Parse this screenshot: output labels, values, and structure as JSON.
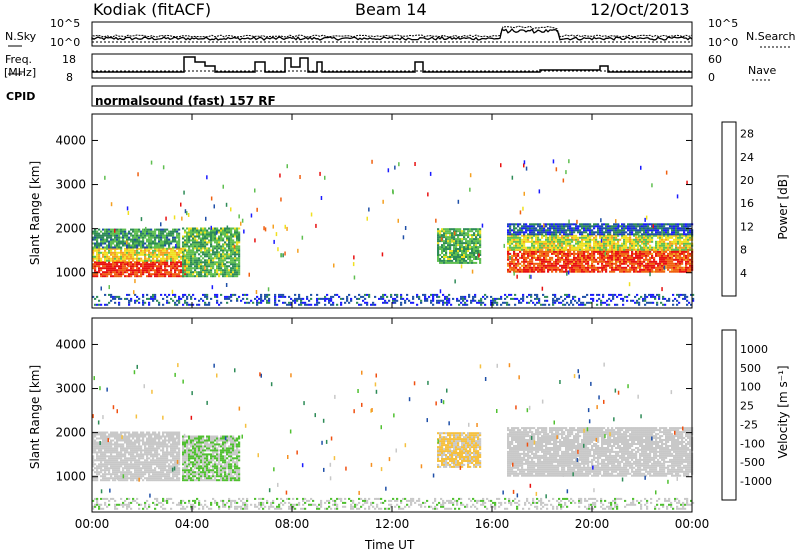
{
  "header": {
    "radar": "Kodiak (fitACF)",
    "beam": "Beam 14",
    "date": "12/Oct/2013"
  },
  "top_panels": {
    "nsky_label": "N.Sky",
    "nsky_ticks": [
      "10^5",
      "10^0"
    ],
    "nsearch_label": "N.Search",
    "nsearch_ticks": [
      "10^5",
      "10^0"
    ],
    "freq_label": "Freq.",
    "freq_unit": "[MHz]",
    "freq_ticks": [
      "18",
      "8"
    ],
    "nave_label": "Nave",
    "nave_ticks": [
      "60",
      "0"
    ],
    "cpid_label": "CPID",
    "cpid_text": "normalsound (fast) 157 RF"
  },
  "colors": {
    "power_scale": [
      "#1a1aff",
      "#1f4fa8",
      "#2e8b57",
      "#5fbf50",
      "#f0e020",
      "#f5a020",
      "#f06010",
      "#e81010"
    ],
    "velocity_scale": [
      "#e81010",
      "#f05010",
      "#f59020",
      "#f5c040",
      "#c8c8c8",
      "#50c030",
      "#2e8b57",
      "#1f4fa8",
      "#1a1aff"
    ]
  },
  "chart_data": [
    {
      "type": "heatmap",
      "title": "",
      "xlabel": "Time UT",
      "ylabel": "Slant Range [km]",
      "xlim": [
        0,
        24
      ],
      "ylim": [
        200,
        4600
      ],
      "x_ticks": [
        "00:00",
        "04:00",
        "08:00",
        "12:00",
        "16:00",
        "20:00",
        "00:00"
      ],
      "y_ticks": [
        "1000",
        "2000",
        "3000",
        "4000"
      ],
      "colorbar": {
        "label": "Power [dB]",
        "ticks": [
          "4",
          "8",
          "12",
          "16",
          "20",
          "24",
          "28"
        ],
        "range": [
          0,
          30
        ]
      },
      "regions": [
        {
          "t0": 0.0,
          "t1": 3.7,
          "r0": 900,
          "r1": 1250,
          "value": 27
        },
        {
          "t0": 0.0,
          "t1": 3.7,
          "r0": 1250,
          "r1": 1550,
          "value": 18
        },
        {
          "t0": 0.0,
          "t1": 3.5,
          "r0": 1550,
          "r1": 2000,
          "value": 10
        },
        {
          "t0": 3.6,
          "t1": 5.9,
          "r0": 900,
          "r1": 2000,
          "value": 12
        },
        {
          "t0": 13.8,
          "t1": 15.5,
          "r0": 1200,
          "r1": 2000,
          "value": 12
        },
        {
          "t0": 16.6,
          "t1": 24.0,
          "r0": 1000,
          "r1": 1500,
          "value": 26
        },
        {
          "t0": 16.6,
          "t1": 24.0,
          "r0": 1500,
          "r1": 1850,
          "value": 16
        },
        {
          "t0": 16.6,
          "t1": 24.0,
          "r0": 1850,
          "r1": 2100,
          "value": 6
        },
        {
          "t0": 0.0,
          "t1": 24.0,
          "r0": 250,
          "r1": 500,
          "value": 5
        }
      ]
    },
    {
      "type": "heatmap",
      "title": "",
      "xlabel": "Time UT",
      "ylabel": "Slant Range [km]",
      "xlim": [
        0,
        24
      ],
      "ylim": [
        200,
        4600
      ],
      "x_ticks": [
        "00:00",
        "04:00",
        "08:00",
        "12:00",
        "16:00",
        "20:00",
        "00:00"
      ],
      "y_ticks": [
        "1000",
        "2000",
        "3000",
        "4000"
      ],
      "colorbar": {
        "label": "Velocity [m s⁻¹]",
        "ticks": [
          "1000",
          "500",
          "100",
          "25",
          "-25",
          "-100",
          "-500",
          "-1000"
        ],
        "range": [
          -1000,
          1000
        ]
      },
      "regions": [
        {
          "t0": 0.0,
          "t1": 3.5,
          "r0": 900,
          "r1": 2000,
          "value": 0
        },
        {
          "t0": 3.6,
          "t1": 5.9,
          "r0": 900,
          "r1": 1900,
          "value": 120
        },
        {
          "t0": 13.8,
          "t1": 15.5,
          "r0": 1200,
          "r1": 2000,
          "value": -150
        },
        {
          "t0": 16.6,
          "t1": 24.0,
          "r0": 1000,
          "r1": 2100,
          "value": 0
        },
        {
          "t0": 0.0,
          "t1": 24.0,
          "r0": 250,
          "r1": 500,
          "value": 60
        }
      ]
    }
  ]
}
